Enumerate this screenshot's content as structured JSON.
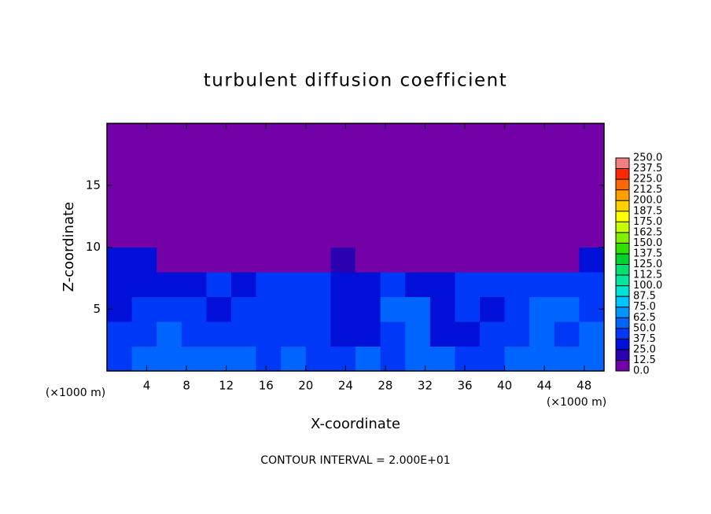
{
  "chart_data": {
    "type": "contour",
    "title": "turbulent diffusion coefficient",
    "x_label": "X-coordinate",
    "y_label": "Z-coordinate",
    "y_unit_label": "(×1000 m)",
    "x_unit_label": "(×1000 m)",
    "note": "CONTOUR INTERVAL = 2.000E+01",
    "xlim": [
      0,
      50
    ],
    "ylim": [
      0,
      20
    ],
    "xticks": [
      4,
      8,
      12,
      16,
      20,
      24,
      28,
      32,
      36,
      40,
      44,
      48
    ],
    "yticks": [
      5,
      10,
      15
    ],
    "x": [
      0,
      2.5,
      5,
      7.5,
      10,
      12.5,
      15,
      17.5,
      20,
      22.5,
      25,
      27.5,
      30,
      32.5,
      35,
      37.5,
      40,
      42.5,
      45,
      47.5,
      50
    ],
    "z_levels": [
      0,
      2,
      4,
      6,
      8,
      10,
      12,
      14,
      16,
      18,
      20
    ],
    "values": [
      [
        45,
        55,
        50,
        60,
        55,
        50,
        45,
        50,
        45,
        40,
        50,
        45,
        55,
        50,
        40,
        45,
        50,
        60,
        55,
        50
      ],
      [
        40,
        45,
        50,
        45,
        40,
        40,
        45,
        45,
        40,
        35,
        35,
        40,
        50,
        35,
        35,
        40,
        45,
        55,
        45,
        50
      ],
      [
        35,
        40,
        45,
        40,
        35,
        40,
        40,
        45,
        45,
        35,
        35,
        50,
        50,
        35,
        40,
        35,
        40,
        50,
        50,
        45
      ],
      [
        35,
        35,
        30,
        25,
        40,
        35,
        40,
        45,
        45,
        35,
        35,
        45,
        35,
        30,
        40,
        40,
        45,
        40,
        45,
        40
      ],
      [
        30,
        25,
        10,
        0,
        0,
        0,
        0,
        0,
        0,
        20,
        0,
        0,
        0,
        0,
        0,
        0,
        0,
        0,
        0,
        25
      ],
      [
        0,
        0,
        0,
        0,
        0,
        0,
        0,
        0,
        0,
        0,
        0,
        0,
        0,
        0,
        0,
        0,
        0,
        0,
        0,
        0
      ],
      [
        0,
        0,
        0,
        0,
        0,
        0,
        0,
        0,
        0,
        0,
        0,
        0,
        0,
        0,
        0,
        0,
        0,
        0,
        0,
        0
      ],
      [
        0,
        0,
        0,
        0,
        0,
        0,
        0,
        0,
        0,
        0,
        0,
        0,
        0,
        0,
        0,
        0,
        0,
        0,
        0,
        0
      ],
      [
        0,
        0,
        0,
        0,
        0,
        0,
        0,
        0,
        0,
        0,
        0,
        0,
        0,
        0,
        0,
        0,
        0,
        0,
        0,
        0
      ],
      [
        0,
        0,
        0,
        0,
        0,
        0,
        0,
        0,
        0,
        0,
        0,
        0,
        0,
        0,
        0,
        0,
        0,
        0,
        0,
        0
      ]
    ],
    "colorbar": {
      "levels": [
        {
          "value": 0,
          "label": "0.0"
        },
        12.5,
        {
          "value": 25,
          "label": "25.0"
        },
        37.5,
        {
          "value": 50,
          "label": "50.0"
        },
        62.5,
        {
          "value": 75,
          "label": "75.0"
        },
        87.5,
        {
          "value": 100,
          "label": "100.0"
        },
        112.5,
        {
          "value": 125,
          "label": "125.0"
        },
        137.5,
        {
          "value": 150,
          "label": "150.0"
        },
        162.5,
        {
          "value": 175,
          "label": "175.0"
        },
        187.5,
        {
          "value": 200,
          "label": "200.0"
        },
        212.5,
        {
          "value": 225,
          "label": "225.0"
        },
        237.5,
        {
          "value": 250,
          "label": "250.0"
        }
      ],
      "colors": [
        "#7400a8",
        "#2a00b0",
        "#0010d8",
        "#0038f8",
        "#0064ff",
        "#0094ff",
        "#00c4ff",
        "#00e4d8",
        "#00e8a0",
        "#00e070",
        "#00d030",
        "#30e000",
        "#80f000",
        "#c8ff00",
        "#ffff00",
        "#ffd000",
        "#ffa000",
        "#ff6800",
        "#ff2800",
        "#f08080"
      ]
    }
  }
}
